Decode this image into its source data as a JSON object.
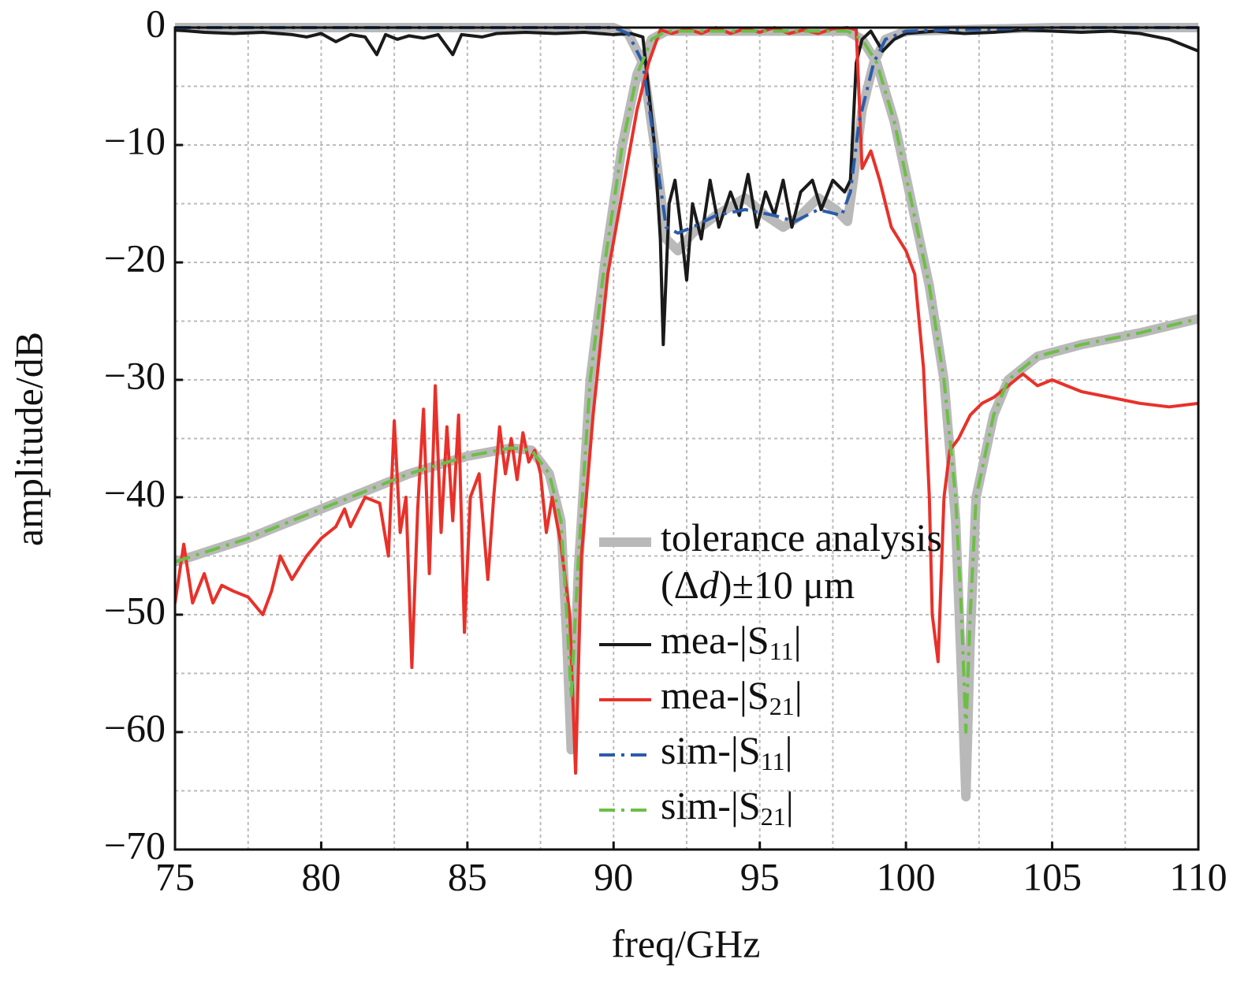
{
  "chart_data": {
    "type": "line",
    "x_label": "freq/GHz",
    "y_label": "amplitude/dB",
    "xlim": [
      75,
      110
    ],
    "ylim": [
      -70,
      0
    ],
    "xticks": [
      75,
      80,
      85,
      90,
      95,
      100,
      105,
      110
    ],
    "yticks": [
      0,
      {
        "value": -10,
        "label": "−10"
      },
      {
        "value": -20,
        "label": "−20"
      },
      {
        "value": -30,
        "label": "−30"
      },
      {
        "value": -40,
        "label": "−40"
      },
      {
        "value": -50,
        "label": "−50"
      },
      {
        "value": -60,
        "label": "−60"
      },
      {
        "value": -70,
        "label": "−70"
      }
    ],
    "grid": true,
    "minor_grid": true,
    "legend": "lower-center",
    "series": [
      {
        "name": "tolerance analysis (Δd)±10 μm",
        "color": "#b9b9b9",
        "dash": "solid",
        "width": 12,
        "curves": [
          {
            "x": [
              75,
              77.5,
              80,
              83,
              85,
              86.5,
              87.2,
              87.8,
              88.2,
              88.4,
              88.55,
              88.8,
              89.2,
              89.7,
              90.3,
              90.8,
              91.3,
              91.8,
              95,
              98,
              98.5,
              99,
              99.6,
              100.2,
              100.8,
              101.3,
              101.7,
              101.9,
              102.05,
              102.2,
              102.4,
              103,
              103.5,
              104.5,
              106,
              108,
              110
            ],
            "values": [
              -45.5,
              -43.5,
              -41,
              -38,
              -36.5,
              -35.8,
              -36,
              -38,
              -42,
              -52,
              -61.5,
              -46,
              -30,
              -20,
              -10,
              -4,
              -1,
              -0.3,
              -0.3,
              -0.3,
              -1,
              -3,
              -8,
              -15,
              -22,
              -30,
              -42,
              -55,
              -65.5,
              -52,
              -40,
              -33,
              -30,
              -28,
              -27,
              -26,
              -24.8
            ]
          },
          {
            "x": [
              75,
              85,
              90,
              90.5,
              91,
              91.4,
              91.8,
              92.2,
              92.7,
              93.5,
              94.5,
              95.2,
              95.8,
              96.4,
              97,
              97.6,
              98,
              98.2,
              98.5,
              98.9,
              99.3,
              100,
              105,
              110
            ],
            "values": [
              0,
              0,
              0,
              -0.5,
              -3,
              -10,
              -18,
              -19,
              -17.5,
              -16,
              -14.5,
              -16,
              -17,
              -16,
              -14.5,
              -15.5,
              -16.5,
              -13,
              -7,
              -3,
              -1,
              -0.3,
              0,
              0
            ]
          }
        ]
      },
      {
        "name": "mea-|S11|",
        "color": "#1a1a1a",
        "dash": "solid",
        "width": 4,
        "x": [
          75,
          76,
          77,
          78,
          79,
          79.5,
          80,
          80.5,
          81,
          81.5,
          81.9,
          82.2,
          82.6,
          83,
          83.5,
          84,
          84.5,
          84.8,
          85.5,
          86,
          87,
          88,
          89,
          90,
          90.6,
          91,
          91.4,
          91.6,
          91.7,
          91.9,
          92.1,
          92.3,
          92.5,
          92.7,
          93,
          93.3,
          93.6,
          94,
          94.3,
          94.6,
          94.9,
          95.2,
          95.5,
          95.8,
          96.1,
          96.4,
          96.8,
          97.1,
          97.5,
          97.9,
          98.1,
          98.3,
          98.5,
          98.8,
          99.2,
          99.6,
          100,
          101,
          102,
          103,
          104,
          105,
          106,
          107,
          108,
          109,
          110
        ],
        "values": [
          -0.2,
          -0.4,
          -0.5,
          -0.4,
          -0.6,
          -0.8,
          -0.5,
          -1.2,
          -0.6,
          -0.8,
          -2.3,
          -0.6,
          -1,
          -0.7,
          -0.9,
          -0.6,
          -2.3,
          -0.6,
          -0.8,
          -0.5,
          -0.4,
          -0.5,
          -0.4,
          -0.6,
          -0.5,
          -0.8,
          -10,
          -18,
          -27,
          -15,
          -13,
          -17,
          -21.5,
          -15,
          -18,
          -13,
          -17,
          -14,
          -16,
          -12.5,
          -17,
          -14,
          -16,
          -13,
          -17,
          -14,
          -13,
          -15.5,
          -13,
          -14,
          -13,
          -3,
          -1,
          -0.3,
          -2,
          -1,
          -0.5,
          -0.3,
          -0.5,
          -0.4,
          -0.2,
          -0.3,
          -0.4,
          -0.3,
          -0.5,
          -1,
          -2
        ]
      },
      {
        "name": "mea-|S21|",
        "color": "#e8312a",
        "dash": "solid",
        "width": 4,
        "x": [
          75,
          75.3,
          75.6,
          76,
          76.3,
          76.6,
          77,
          77.5,
          78,
          78.3,
          78.6,
          79,
          79.5,
          80,
          80.5,
          80.8,
          81,
          81.5,
          82,
          82.3,
          82.5,
          82.7,
          82.9,
          83.1,
          83.3,
          83.5,
          83.7,
          83.9,
          84.1,
          84.3,
          84.5,
          84.7,
          84.9,
          85.1,
          85.4,
          85.7,
          85.9,
          86.1,
          86.3,
          86.5,
          86.7,
          86.9,
          87.1,
          87.3,
          87.5,
          87.7,
          87.9,
          88.2,
          88.5,
          88.7,
          88.9,
          89.3,
          89.8,
          90.3,
          90.8,
          91.2,
          91.6,
          92,
          92.5,
          93,
          93.5,
          94,
          94.5,
          95,
          95.5,
          96,
          96.5,
          97,
          97.5,
          98,
          98.3,
          98.5,
          98.8,
          99.1,
          99.5,
          100,
          100.3,
          100.6,
          100.8,
          100.9,
          101.1,
          101.3,
          101.5,
          101.8,
          102.2,
          102.6,
          103,
          103.5,
          104,
          104.5,
          105,
          105.5,
          106,
          107,
          108,
          109,
          110
        ],
        "values": [
          -49,
          -44,
          -49,
          -46.5,
          -49,
          -47.5,
          -48,
          -48.5,
          -50,
          -48,
          -45,
          -47,
          -45,
          -43.5,
          -42.5,
          -41,
          -42.5,
          -40,
          -40.5,
          -45,
          -33.5,
          -43,
          -40,
          -54.5,
          -41,
          -32.5,
          -46.5,
          -30.5,
          -43,
          -34,
          -42,
          -33,
          -51.5,
          -40,
          -38,
          -47,
          -40,
          -34,
          -38,
          -35,
          -38.5,
          -34.5,
          -37,
          -36,
          -38,
          -43,
          -40,
          -44,
          -50,
          -63.5,
          -45,
          -33,
          -21,
          -14,
          -7,
          -3,
          -0.2,
          -0.5,
          -0.1,
          -0.5,
          0,
          -0.5,
          -0.1,
          -0.4,
          0,
          -0.5,
          -0.2,
          -0.5,
          -0.1,
          0,
          -0.2,
          -12,
          -10.5,
          -13,
          -17,
          -19,
          -21,
          -29,
          -40,
          -50,
          -54,
          -40,
          -36,
          -35,
          -33,
          -32,
          -31.5,
          -30.5,
          -29.5,
          -30.5,
          -30,
          -30.5,
          -31,
          -31.5,
          -32,
          -32.3,
          -32
        ]
      },
      {
        "name": "sim-|S11|",
        "color": "#2a5caa",
        "dash": "dashdot",
        "width": 4,
        "x": [
          75,
          85,
          90,
          90.5,
          91,
          91.4,
          91.8,
          92.2,
          92.7,
          93.5,
          94.5,
          95.5,
          96.2,
          97,
          97.8,
          98.1,
          98.4,
          98.9,
          99.3,
          100,
          105,
          110
        ],
        "values": [
          0,
          0,
          0,
          -0.5,
          -3,
          -10,
          -17,
          -17.5,
          -17,
          -16,
          -15.5,
          -16,
          -16.5,
          -15.5,
          -16,
          -14,
          -8,
          -3,
          -1,
          -0.3,
          0,
          0
        ]
      },
      {
        "name": "sim-|S21|",
        "color": "#6cbf45",
        "dash": "dashdot",
        "width": 4,
        "x": [
          75,
          77.5,
          80,
          83,
          85,
          86.5,
          87.2,
          87.8,
          88.2,
          88.4,
          88.55,
          88.8,
          89.2,
          89.7,
          90.3,
          90.8,
          91.3,
          91.8,
          95,
          98,
          98.5,
          99,
          99.6,
          100.2,
          100.8,
          101.3,
          101.7,
          101.9,
          102.05,
          102.2,
          102.4,
          103,
          103.5,
          104.5,
          106,
          108,
          110
        ],
        "values": [
          -45.5,
          -43.5,
          -41,
          -38,
          -36.5,
          -35.8,
          -36,
          -38,
          -42,
          -50,
          -57,
          -45,
          -30,
          -20,
          -10,
          -4,
          -1,
          -0.3,
          -0.3,
          -0.3,
          -1,
          -3,
          -8,
          -15,
          -22,
          -30,
          -40,
          -50,
          -60,
          -50,
          -40,
          -33,
          -30,
          -28,
          -27,
          -26,
          -24.8
        ]
      }
    ]
  }
}
